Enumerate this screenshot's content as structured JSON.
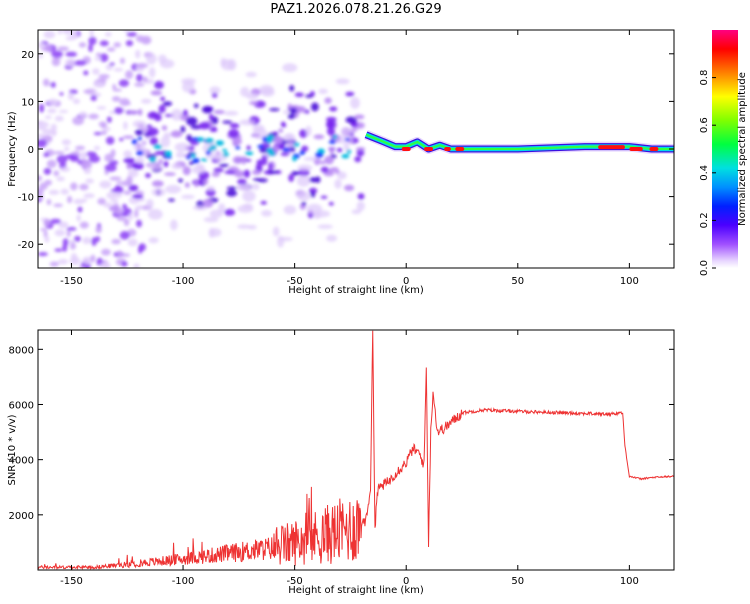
{
  "title": "PAZ1.2026.078.21.26.G29",
  "chart_data": [
    {
      "type": "heatmap",
      "xlabel": "Height of straight line (km)",
      "ylabel": "Frequency (Hz)",
      "xlim": [
        -165,
        120
      ],
      "ylim": [
        -25,
        25
      ],
      "xticks": [
        -150,
        -100,
        -50,
        0,
        50,
        100
      ],
      "yticks": [
        -20,
        -10,
        0,
        10,
        20
      ],
      "colorbar": {
        "label": "Normalized spectral amplitude",
        "range": [
          0,
          1
        ],
        "ticks": [
          0.0,
          0.2,
          0.4,
          0.6,
          0.8
        ]
      },
      "description_points": {
        "ridge_height_km": [
          -18,
          -10,
          -5,
          0,
          5,
          10,
          15,
          20,
          30,
          50,
          80,
          100,
          110,
          120
        ],
        "ridge_freq_hz": [
          3,
          1.5,
          0.5,
          0.5,
          1.5,
          0,
          0.8,
          0,
          0,
          0,
          0.5,
          0.5,
          0,
          0
        ]
      }
    },
    {
      "type": "line",
      "xlabel": "Height of straight line (km)",
      "ylabel": "SNR (10 * v/v)",
      "xlim": [
        -165,
        120
      ],
      "ylim": [
        0,
        8700
      ],
      "xticks": [
        -150,
        -100,
        -50,
        0,
        50,
        100
      ],
      "yticks": [
        2000,
        4000,
        6000,
        8000
      ],
      "color": "#ee3333",
      "series": [
        {
          "name": "SNR",
          "x": [
            -165,
            -140,
            -125,
            -100,
            -80,
            -60,
            -40,
            -25,
            -18,
            -16,
            -15,
            -14,
            -13,
            -12,
            -8,
            -5,
            0,
            3,
            6,
            8,
            9,
            10,
            11,
            12,
            14,
            18,
            25,
            35,
            50,
            70,
            90,
            97,
            98,
            100,
            105,
            110,
            120
          ],
          "y": [
            100,
            100,
            200,
            400,
            600,
            800,
            1200,
            1500,
            1800,
            3000,
            8650,
            1500,
            2800,
            3000,
            3200,
            3500,
            3900,
            4400,
            4200,
            3800,
            7400,
            1000,
            5000,
            6500,
            5000,
            5200,
            5700,
            5800,
            5750,
            5700,
            5650,
            5700,
            4500,
            3400,
            3300,
            3350,
            3400
          ]
        }
      ]
    }
  ]
}
